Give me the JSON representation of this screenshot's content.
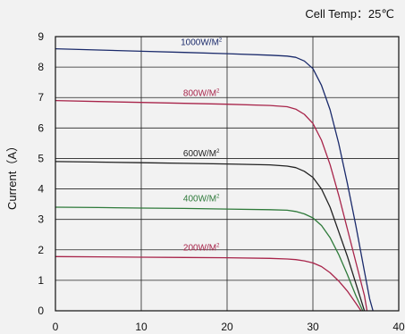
{
  "chart_data": {
    "type": "line",
    "title": "",
    "annotation": "Cell Temp：25℃",
    "xlabel": "",
    "ylabel": "Current（A）",
    "xlim": [
      0,
      40
    ],
    "ylim": [
      0,
      9
    ],
    "x_ticks": [
      "0",
      "10",
      "20",
      "30",
      "40"
    ],
    "y_ticks": [
      "0",
      "1",
      "2",
      "3",
      "4",
      "5",
      "6",
      "7",
      "8",
      "9"
    ],
    "grid": true,
    "legend": "inline labels above each curve",
    "series": [
      {
        "name": "1000W/M²",
        "label_main": "1000W/M",
        "label_sup": "2",
        "color": "#1a2a6b",
        "x": [
          0,
          5,
          10,
          15,
          20,
          25,
          27,
          28,
          29,
          30,
          31,
          32,
          33,
          34,
          35,
          36,
          36.6,
          37
        ],
        "y": [
          8.6,
          8.56,
          8.52,
          8.48,
          8.44,
          8.39,
          8.36,
          8.32,
          8.2,
          7.95,
          7.4,
          6.6,
          5.5,
          4.2,
          2.8,
          1.3,
          0.4,
          0
        ]
      },
      {
        "name": "800W/M²",
        "label_main": "800W/M",
        "label_sup": "2",
        "color": "#a8244a",
        "x": [
          0,
          5,
          10,
          15,
          20,
          25,
          27,
          28,
          29,
          30,
          31,
          32,
          33,
          34,
          35,
          36,
          36.3
        ],
        "y": [
          6.9,
          6.87,
          6.84,
          6.81,
          6.78,
          6.74,
          6.7,
          6.62,
          6.45,
          6.15,
          5.6,
          4.8,
          3.8,
          2.7,
          1.6,
          0.5,
          0
        ]
      },
      {
        "name": "600W/M²",
        "label_main": "600W/M",
        "label_sup": "2",
        "color": "#222222",
        "x": [
          0,
          5,
          10,
          15,
          20,
          25,
          27,
          28,
          29,
          30,
          31,
          32,
          33,
          34,
          35,
          36
        ],
        "y": [
          4.9,
          4.88,
          4.86,
          4.84,
          4.82,
          4.79,
          4.75,
          4.7,
          4.58,
          4.38,
          4.0,
          3.4,
          2.6,
          1.8,
          0.9,
          0
        ]
      },
      {
        "name": "400W/M²",
        "label_main": "400W/M",
        "label_sup": "2",
        "color": "#2e7a3a",
        "x": [
          0,
          5,
          10,
          15,
          20,
          25,
          27,
          28,
          29,
          30,
          31,
          32,
          33,
          34,
          35,
          35.8
        ],
        "y": [
          3.4,
          3.39,
          3.37,
          3.36,
          3.34,
          3.32,
          3.3,
          3.26,
          3.18,
          3.05,
          2.8,
          2.4,
          1.85,
          1.2,
          0.5,
          0
        ]
      },
      {
        "name": "200W/M²",
        "label_main": "200W/M",
        "label_sup": "2",
        "color": "#a8244a",
        "x": [
          0,
          5,
          10,
          15,
          20,
          25,
          27,
          28,
          29,
          30,
          31,
          32,
          33,
          34,
          35,
          35.6
        ],
        "y": [
          1.78,
          1.77,
          1.76,
          1.75,
          1.74,
          1.72,
          1.7,
          1.68,
          1.64,
          1.57,
          1.45,
          1.25,
          0.98,
          0.65,
          0.25,
          0
        ]
      }
    ]
  }
}
